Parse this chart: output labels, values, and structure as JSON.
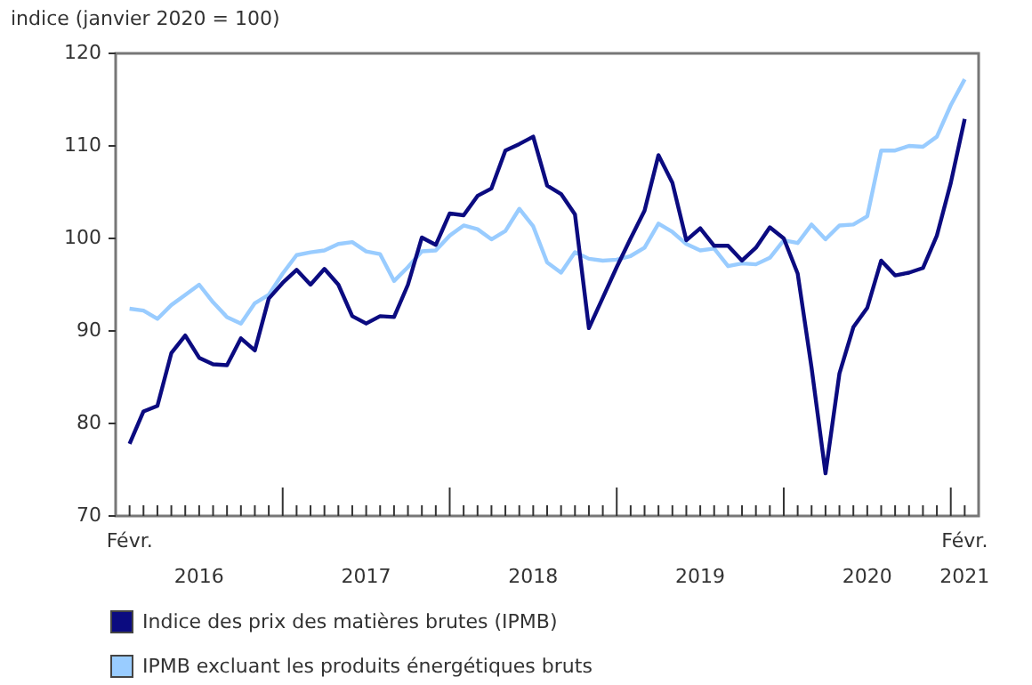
{
  "chart_data": {
    "type": "line",
    "ylabel": "indice (janvier 2020 = 100)",
    "x": [
      "2016-02",
      "2016-03",
      "2016-04",
      "2016-05",
      "2016-06",
      "2016-07",
      "2016-08",
      "2016-09",
      "2016-10",
      "2016-11",
      "2016-12",
      "2017-01",
      "2017-02",
      "2017-03",
      "2017-04",
      "2017-05",
      "2017-06",
      "2017-07",
      "2017-08",
      "2017-09",
      "2017-10",
      "2017-11",
      "2017-12",
      "2018-01",
      "2018-02",
      "2018-03",
      "2018-04",
      "2018-05",
      "2018-06",
      "2018-07",
      "2018-08",
      "2018-09",
      "2018-10",
      "2018-11",
      "2018-12",
      "2019-01",
      "2019-02",
      "2019-03",
      "2019-04",
      "2019-05",
      "2019-06",
      "2019-07",
      "2019-08",
      "2019-09",
      "2019-10",
      "2019-11",
      "2019-12",
      "2020-01",
      "2020-02",
      "2020-03",
      "2020-04",
      "2020-05",
      "2020-06",
      "2020-07",
      "2020-08",
      "2020-09",
      "2020-10",
      "2020-11",
      "2020-12",
      "2021-01",
      "2021-02"
    ],
    "series": [
      {
        "name": "Indice des prix des matières brutes (IPMB)",
        "color": "#0b0b80",
        "values": [
          77.8,
          81.3,
          81.9,
          87.6,
          89.5,
          87.1,
          86.4,
          86.3,
          89.2,
          87.9,
          93.5,
          95.2,
          96.6,
          95.0,
          96.7,
          95.0,
          91.6,
          90.8,
          91.6,
          91.5,
          95.0,
          100.1,
          99.3,
          102.7,
          102.5,
          104.6,
          105.4,
          109.5,
          110.2,
          111.0,
          105.7,
          104.8,
          102.6,
          90.3,
          93.6,
          96.9,
          100.0,
          103.0,
          109.0,
          106.0,
          99.8,
          101.1,
          99.2,
          99.2,
          97.6,
          99.0,
          101.2,
          100.0,
          96.2,
          86.0,
          74.6,
          85.4,
          90.4,
          92.5,
          97.6,
          96.0,
          96.3,
          96.8,
          100.3,
          106.0,
          112.9
        ]
      },
      {
        "name": "IPMB excluant les produits énergétiques bruts",
        "color": "#99ccff",
        "values": [
          92.4,
          92.2,
          91.3,
          92.8,
          93.9,
          95.0,
          93.1,
          91.5,
          90.8,
          93.0,
          93.9,
          96.2,
          98.2,
          98.5,
          98.7,
          99.4,
          99.6,
          98.6,
          98.3,
          95.4,
          96.9,
          98.6,
          98.7,
          100.3,
          101.4,
          101.0,
          99.9,
          100.8,
          103.2,
          101.3,
          97.4,
          96.3,
          98.5,
          97.8,
          97.6,
          97.7,
          98.1,
          99.0,
          101.6,
          100.7,
          99.4,
          98.7,
          98.9,
          97.0,
          97.3,
          97.2,
          97.9,
          99.8,
          99.5,
          101.5,
          99.9,
          101.4,
          101.5,
          102.4,
          109.5,
          109.5,
          110.0,
          109.9,
          111.0,
          114.4,
          117.2
        ]
      }
    ],
    "xlim": [
      "2016-01",
      "2021-03"
    ],
    "xticks": [
      {
        "value": "2016-02",
        "label": null
      },
      {
        "value": "2016-03",
        "label": null
      },
      {
        "value": "2016-04",
        "label": null
      },
      {
        "value": "2016-05",
        "label": null
      },
      {
        "value": "2016-06",
        "label": null
      },
      {
        "value": "2016-07",
        "label": "2016"
      },
      {
        "value": "2016-08",
        "label": null
      },
      {
        "value": "2016-09",
        "label": null
      },
      {
        "value": "2016-10",
        "label": null
      },
      {
        "value": "2016-11",
        "label": null
      },
      {
        "value": "2016-12",
        "label": null
      },
      {
        "value": "2017-01",
        "label": null
      },
      {
        "value": "2017-02",
        "label": null
      },
      {
        "value": "2017-03",
        "label": null
      },
      {
        "value": "2017-04",
        "label": null
      },
      {
        "value": "2017-05",
        "label": null
      },
      {
        "value": "2017-06",
        "label": null
      },
      {
        "value": "2017-07",
        "label": "2017"
      },
      {
        "value": "2017-08",
        "label": null
      },
      {
        "value": "2017-09",
        "label": null
      },
      {
        "value": "2017-10",
        "label": null
      },
      {
        "value": "2017-11",
        "label": null
      },
      {
        "value": "2017-12",
        "label": null
      },
      {
        "value": "2018-01",
        "label": null
      },
      {
        "value": "2018-02",
        "label": null
      },
      {
        "value": "2018-03",
        "label": null
      },
      {
        "value": "2018-04",
        "label": null
      },
      {
        "value": "2018-05",
        "label": null
      },
      {
        "value": "2018-06",
        "label": null
      },
      {
        "value": "2018-07",
        "label": "2018"
      },
      {
        "value": "2018-08",
        "label": null
      },
      {
        "value": "2018-09",
        "label": null
      },
      {
        "value": "2018-10",
        "label": null
      },
      {
        "value": "2018-11",
        "label": null
      },
      {
        "value": "2018-12",
        "label": null
      },
      {
        "value": "2019-01",
        "label": null
      },
      {
        "value": "2019-02",
        "label": null
      },
      {
        "value": "2019-03",
        "label": null
      },
      {
        "value": "2019-04",
        "label": null
      },
      {
        "value": "2019-05",
        "label": null
      },
      {
        "value": "2019-06",
        "label": null
      },
      {
        "value": "2019-07",
        "label": "2019"
      },
      {
        "value": "2019-08",
        "label": null
      },
      {
        "value": "2019-09",
        "label": null
      },
      {
        "value": "2019-10",
        "label": null
      },
      {
        "value": "2019-11",
        "label": null
      },
      {
        "value": "2019-12",
        "label": null
      },
      {
        "value": "2020-01",
        "label": null
      },
      {
        "value": "2020-02",
        "label": null
      },
      {
        "value": "2020-03",
        "label": null
      },
      {
        "value": "2020-04",
        "label": null
      },
      {
        "value": "2020-05",
        "label": null
      },
      {
        "value": "2020-06",
        "label": null
      },
      {
        "value": "2020-07",
        "label": "2020"
      },
      {
        "value": "2020-08",
        "label": null
      },
      {
        "value": "2020-09",
        "label": null
      },
      {
        "value": "2020-10",
        "label": null
      },
      {
        "value": "2020-11",
        "label": null
      },
      {
        "value": "2020-12",
        "label": null
      },
      {
        "value": "2021-01",
        "label": null
      },
      {
        "value": "2021-02",
        "label": "2021"
      }
    ],
    "annotations": [
      "Févr.",
      "Févr."
    ],
    "ylim": [
      70,
      120
    ],
    "yticks": [
      70,
      80,
      90,
      100,
      110,
      120
    ],
    "grid": false,
    "legend": "bottom",
    "marker": "none",
    "line_style": "solid"
  }
}
